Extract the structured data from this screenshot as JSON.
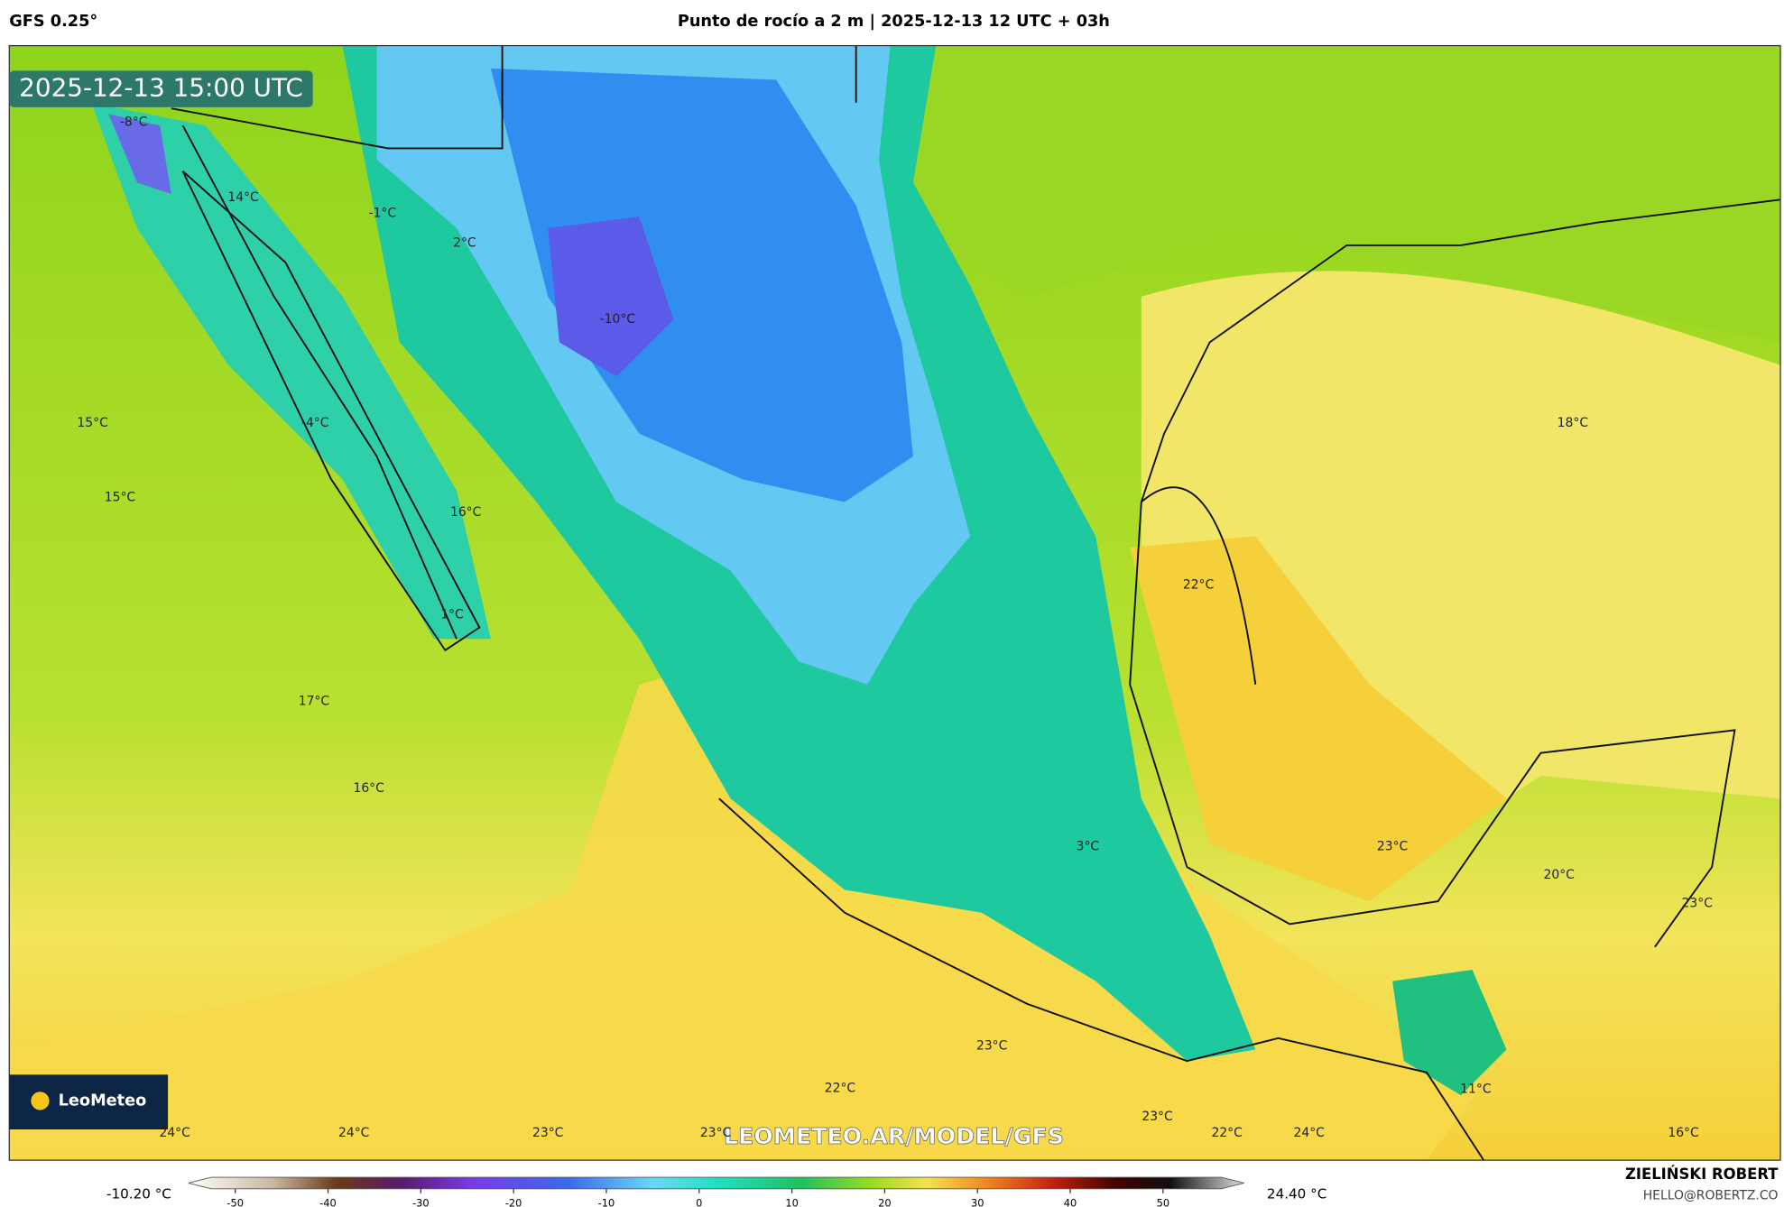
{
  "header": {
    "model": "GFS 0.25°",
    "title": "Punto de rocío a 2 m | 2025-12-13 12 UTC + 03h"
  },
  "timestamp": "2025-12-13 15:00 UTC",
  "map_labels": [
    "-8°C",
    "14°C",
    "-1°C",
    "2°C",
    "-10°C",
    "15°C",
    "-4°C",
    "15°C",
    "16°C",
    "22°C",
    "18°C",
    "1°C",
    "17°C",
    "16°C",
    "3°C",
    "23°C",
    "20°C",
    "23°C",
    "23°C",
    "22°C",
    "11°C",
    "23°C",
    "24°C",
    "24°C",
    "23°C",
    "23°C",
    "22°C",
    "24°C",
    "16°C"
  ],
  "watermark": "LEOMETEO.AR/MODEL/GFS",
  "logo": "LeoMeteo",
  "colorbar": {
    "min_label": "-10.20 °C",
    "max_label": "24.40 °C",
    "ticks": [
      -50,
      -40,
      -30,
      -20,
      -10,
      0,
      10,
      20,
      30,
      40,
      50
    ]
  },
  "credits": {
    "author": "ZIELIŃSKI ROBERT",
    "email": "HELLO@ROBERTZ.CO"
  }
}
